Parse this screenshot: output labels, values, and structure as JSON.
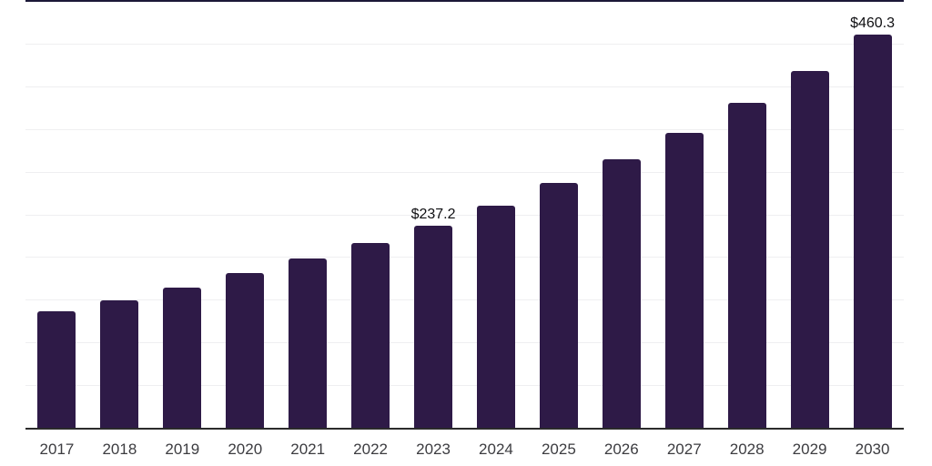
{
  "chart_data": {
    "type": "bar",
    "title": "",
    "xlabel": "",
    "ylabel": "",
    "categories": [
      "2017",
      "2018",
      "2019",
      "2020",
      "2021",
      "2022",
      "2023",
      "2024",
      "2025",
      "2026",
      "2027",
      "2028",
      "2029",
      "2030"
    ],
    "values": [
      136.9,
      149.3,
      163.9,
      180.9,
      197.9,
      216.7,
      237.2,
      260.6,
      286.4,
      314.6,
      345.8,
      380.2,
      418.1,
      460.3
    ],
    "data_labels": [
      {
        "index": 6,
        "text": "$237.2"
      },
      {
        "index": 13,
        "text": "$460.3"
      }
    ],
    "ylim": [
      0,
      500
    ],
    "gridline_step": 50,
    "grid": true,
    "legend": false,
    "y_axis_tick_labels_visible": false
  },
  "colors": {
    "bar": "#2e1a47",
    "gridline": "#efeff1",
    "top_line": "#1b1838",
    "axis_line": "#2b2b2b",
    "tick_label": "#3c3c40",
    "data_label": "#0f0f12",
    "background": "#ffffff"
  }
}
